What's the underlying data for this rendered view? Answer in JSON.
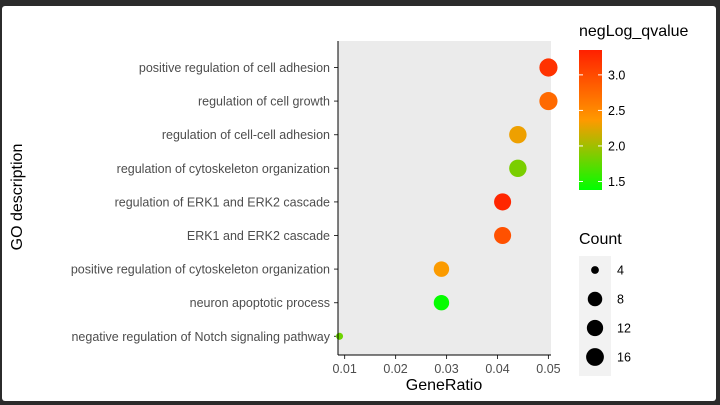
{
  "chart_data": {
    "type": "scatter",
    "title": "",
    "xlabel": "GeneRatio",
    "ylabel": "GO description",
    "xlim": [
      0.0087,
      0.0505
    ],
    "x_ticks": [
      0.01,
      0.02,
      0.03,
      0.04,
      0.05
    ],
    "x_tick_labels": [
      "0.01",
      "0.02",
      "0.03",
      "0.04",
      "0.05"
    ],
    "categories": [
      "positive regulation of cell adhesion",
      "regulation of cell growth",
      "regulation of cell-cell adhesion",
      "regulation of cytoskeleton organization",
      "regulation of ERK1 and ERK2 cascade",
      "ERK1 and ERK2 cascade",
      "positive regulation of cytoskeleton organization",
      "neuron apoptotic process",
      "negative regulation of Notch signaling pathway"
    ],
    "points": [
      {
        "term": "positive regulation of cell adhesion",
        "gene_ratio": 0.05,
        "count": 17,
        "neglog_qvalue": 3.2
      },
      {
        "term": "regulation of cell growth",
        "gene_ratio": 0.05,
        "count": 17,
        "neglog_qvalue": 2.75
      },
      {
        "term": "regulation of cell-cell adhesion",
        "gene_ratio": 0.044,
        "count": 15,
        "neglog_qvalue": 2.3
      },
      {
        "term": "regulation of cytoskeleton organization",
        "gene_ratio": 0.044,
        "count": 15,
        "neglog_qvalue": 1.85
      },
      {
        "term": "regulation of ERK1 and ERK2 cascade",
        "gene_ratio": 0.041,
        "count": 14,
        "neglog_qvalue": 3.3
      },
      {
        "term": "ERK1 and ERK2 cascade",
        "gene_ratio": 0.041,
        "count": 14,
        "neglog_qvalue": 2.95
      },
      {
        "term": "positive regulation of cytoskeleton organization",
        "gene_ratio": 0.029,
        "count": 10,
        "neglog_qvalue": 2.35
      },
      {
        "term": "neuron apoptotic process",
        "gene_ratio": 0.029,
        "count": 10,
        "neglog_qvalue": 1.4
      },
      {
        "term": "negative regulation of Notch signaling pathway",
        "gene_ratio": 0.009,
        "count": 3,
        "neglog_qvalue": 1.8
      }
    ],
    "color_legend": {
      "title": "negLog_qvalue",
      "range": [
        1.38,
        3.35
      ],
      "ticks": [
        1.5,
        2.0,
        2.5,
        3.0
      ],
      "tick_labels": [
        "1.5",
        "2.0",
        "2.5",
        "3.0"
      ],
      "low_color": "#00ff00",
      "mid_color": "#ff9900",
      "high_color": "#ff2000"
    },
    "size_legend": {
      "title": "Count",
      "values": [
        4,
        8,
        12,
        16
      ],
      "labels": [
        "4",
        "8",
        "12",
        "16"
      ]
    },
    "panel_color": "#ebebeb",
    "grid": false
  }
}
